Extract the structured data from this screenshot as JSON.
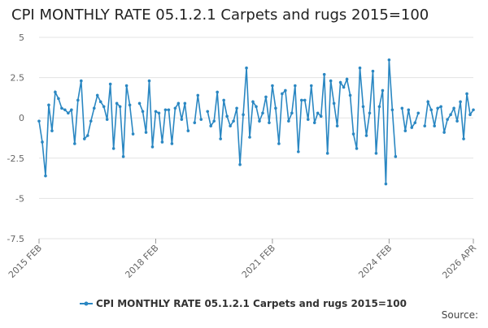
{
  "chart_data": {
    "type": "line",
    "title": "CPI MONTHLY RATE 05.1.2.1 Carpets and rugs 2015=100",
    "categories": [
      "2015 FEB",
      null,
      null,
      null,
      null,
      null,
      null,
      null,
      null,
      null,
      null,
      null,
      null,
      null,
      null,
      null,
      null,
      null,
      null,
      null,
      null,
      null,
      null,
      null,
      null,
      null,
      null,
      null,
      null,
      null,
      null,
      null,
      null,
      null,
      null,
      null,
      "2018 FEB",
      null,
      null,
      null,
      null,
      null,
      null,
      null,
      null,
      null,
      null,
      null,
      null,
      null,
      null,
      null,
      null,
      null,
      null,
      null,
      null,
      null,
      null,
      null,
      null,
      null,
      null,
      null,
      null,
      null,
      null,
      null,
      null,
      null,
      null,
      null,
      "2021 FEB",
      null,
      null,
      null,
      null,
      null,
      null,
      null,
      null,
      null,
      null,
      null,
      null,
      null,
      null,
      null,
      null,
      null,
      null,
      null,
      null,
      null,
      null,
      null,
      null,
      null,
      null,
      null,
      null,
      null,
      null,
      null,
      null,
      null,
      null,
      null,
      "2024 FEB",
      null,
      null,
      null,
      null,
      null,
      null,
      null,
      null,
      null,
      null,
      null,
      null,
      null,
      null,
      null,
      null,
      null,
      null,
      null,
      null,
      null,
      null,
      null,
      null,
      null,
      "2026 APR"
    ],
    "series": [
      {
        "name": "CPI MONTHLY RATE 05.1.2.1 Carpets and rugs 2015=100",
        "color": "#2a87c2",
        "values": [
          -0.2,
          -1.5,
          -3.6,
          0.8,
          -0.8,
          1.6,
          1.2,
          0.6,
          0.5,
          0.3,
          0.5,
          -1.6,
          1.1,
          2.3,
          -1.3,
          -1.1,
          -0.2,
          0.6,
          1.4,
          1.0,
          0.7,
          -0.1,
          2.1,
          -1.9,
          0.9,
          0.7,
          -2.4,
          2.0,
          0.8,
          -1.0,
          null,
          0.9,
          0.4,
          -0.9,
          2.3,
          -1.8,
          0.4,
          0.3,
          -1.5,
          0.5,
          0.5,
          -1.6,
          0.6,
          0.9,
          -0.1,
          0.9,
          -0.8,
          null,
          -0.3,
          1.4,
          -0.1,
          null,
          0.4,
          -0.5,
          -0.2,
          1.6,
          -1.3,
          1.1,
          0.1,
          -0.5,
          -0.2,
          0.6,
          -2.9,
          0.2,
          3.1,
          -1.2,
          1.0,
          0.7,
          -0.2,
          0.3,
          1.3,
          -0.3,
          2.0,
          0.6,
          -1.6,
          1.5,
          1.7,
          -0.2,
          0.3,
          2.0,
          -2.1,
          1.1,
          1.1,
          -0.1,
          2.0,
          -0.3,
          0.3,
          0.1,
          2.7,
          -2.2,
          2.3,
          0.9,
          -0.5,
          2.2,
          1.9,
          2.4,
          1.4,
          -1.0,
          -1.9,
          3.1,
          0.7,
          -1.1,
          0.3,
          2.9,
          -2.2,
          0.7,
          1.7,
          -4.1,
          3.6,
          0.5,
          -2.4,
          null,
          0.6,
          -0.8,
          0.5,
          -0.6,
          -0.3,
          0.3,
          null,
          -0.5,
          1.0,
          0.5,
          -0.5,
          0.6,
          0.7,
          -0.9,
          -0.1,
          0.2,
          0.6,
          -0.2,
          1.0,
          -1.3,
          1.5,
          0.2,
          0.5
        ]
      }
    ],
    "ylim": [
      -7.5,
      5
    ],
    "yticks": [
      5,
      2.5,
      0,
      -2.5,
      -5,
      -7.5
    ],
    "grid": true,
    "legend": "bottom",
    "source": "Source:"
  }
}
